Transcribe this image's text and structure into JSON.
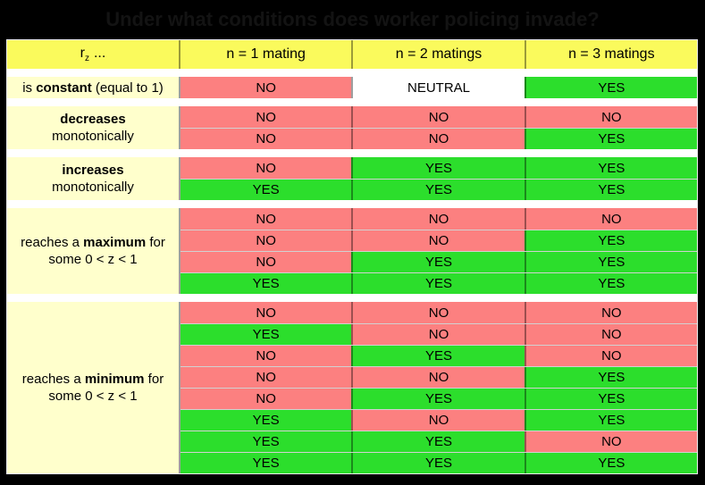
{
  "title": "Under what conditions does worker policing invade?",
  "colors": {
    "background": "#000000",
    "title_text": "#131313",
    "header_bg": "#FAFA5C",
    "label_bg": "#FFFFCC",
    "yes": "#2CDE2C",
    "no": "#FC8080",
    "neutral": "#FFFFFF"
  },
  "chart_data": {
    "type": "table",
    "title": "Under what conditions does worker policing invade?",
    "header": {
      "symbol_base": "r",
      "symbol_sub": "z",
      "symbol_suffix": "...",
      "columns": [
        "n = 1 mating",
        "n = 2 matings",
        "n = 3 matings"
      ]
    },
    "cell_values": {
      "yes": "YES",
      "no": "NO",
      "neutral": "NEUTRAL"
    },
    "groups": [
      {
        "name": "constant",
        "label_lines": [
          [
            {
              "text": "is ",
              "bold": false
            },
            {
              "text": "constant",
              "bold": true
            },
            {
              "text": " (equal to 1)",
              "bold": false
            }
          ]
        ],
        "rows": [
          [
            "NO",
            "NEUTRAL",
            "YES"
          ]
        ]
      },
      {
        "name": "decreases-monotonically",
        "label_lines": [
          [
            {
              "text": "decreases",
              "bold": true
            }
          ],
          [
            {
              "text": "monotonically",
              "bold": false
            }
          ]
        ],
        "rows": [
          [
            "NO",
            "NO",
            "NO"
          ],
          [
            "NO",
            "NO",
            "YES"
          ]
        ]
      },
      {
        "name": "increases-monotonically",
        "label_lines": [
          [
            {
              "text": "increases",
              "bold": true
            }
          ],
          [
            {
              "text": "monotonically",
              "bold": false
            }
          ]
        ],
        "rows": [
          [
            "NO",
            "YES",
            "YES"
          ],
          [
            "YES",
            "YES",
            "YES"
          ]
        ]
      },
      {
        "name": "reaches-maximum",
        "label_lines": [
          [
            {
              "text": "reaches a ",
              "bold": false
            },
            {
              "text": "maximum",
              "bold": true
            },
            {
              "text": " for",
              "bold": false
            }
          ],
          [
            {
              "text": "some 0 < z < 1",
              "bold": false
            }
          ]
        ],
        "rows": [
          [
            "NO",
            "NO",
            "NO"
          ],
          [
            "NO",
            "NO",
            "YES"
          ],
          [
            "NO",
            "YES",
            "YES"
          ],
          [
            "YES",
            "YES",
            "YES"
          ]
        ]
      },
      {
        "name": "reaches-minimum",
        "label_lines": [
          [
            {
              "text": "reaches a ",
              "bold": false
            },
            {
              "text": "minimum",
              "bold": true
            },
            {
              "text": " for",
              "bold": false
            }
          ],
          [
            {
              "text": "some 0 < z < 1",
              "bold": false
            }
          ]
        ],
        "rows": [
          [
            "NO",
            "NO",
            "NO"
          ],
          [
            "YES",
            "NO",
            "NO"
          ],
          [
            "NO",
            "YES",
            "NO"
          ],
          [
            "NO",
            "NO",
            "YES"
          ],
          [
            "NO",
            "YES",
            "YES"
          ],
          [
            "YES",
            "NO",
            "YES"
          ],
          [
            "YES",
            "YES",
            "NO"
          ],
          [
            "YES",
            "YES",
            "YES"
          ]
        ]
      }
    ]
  }
}
